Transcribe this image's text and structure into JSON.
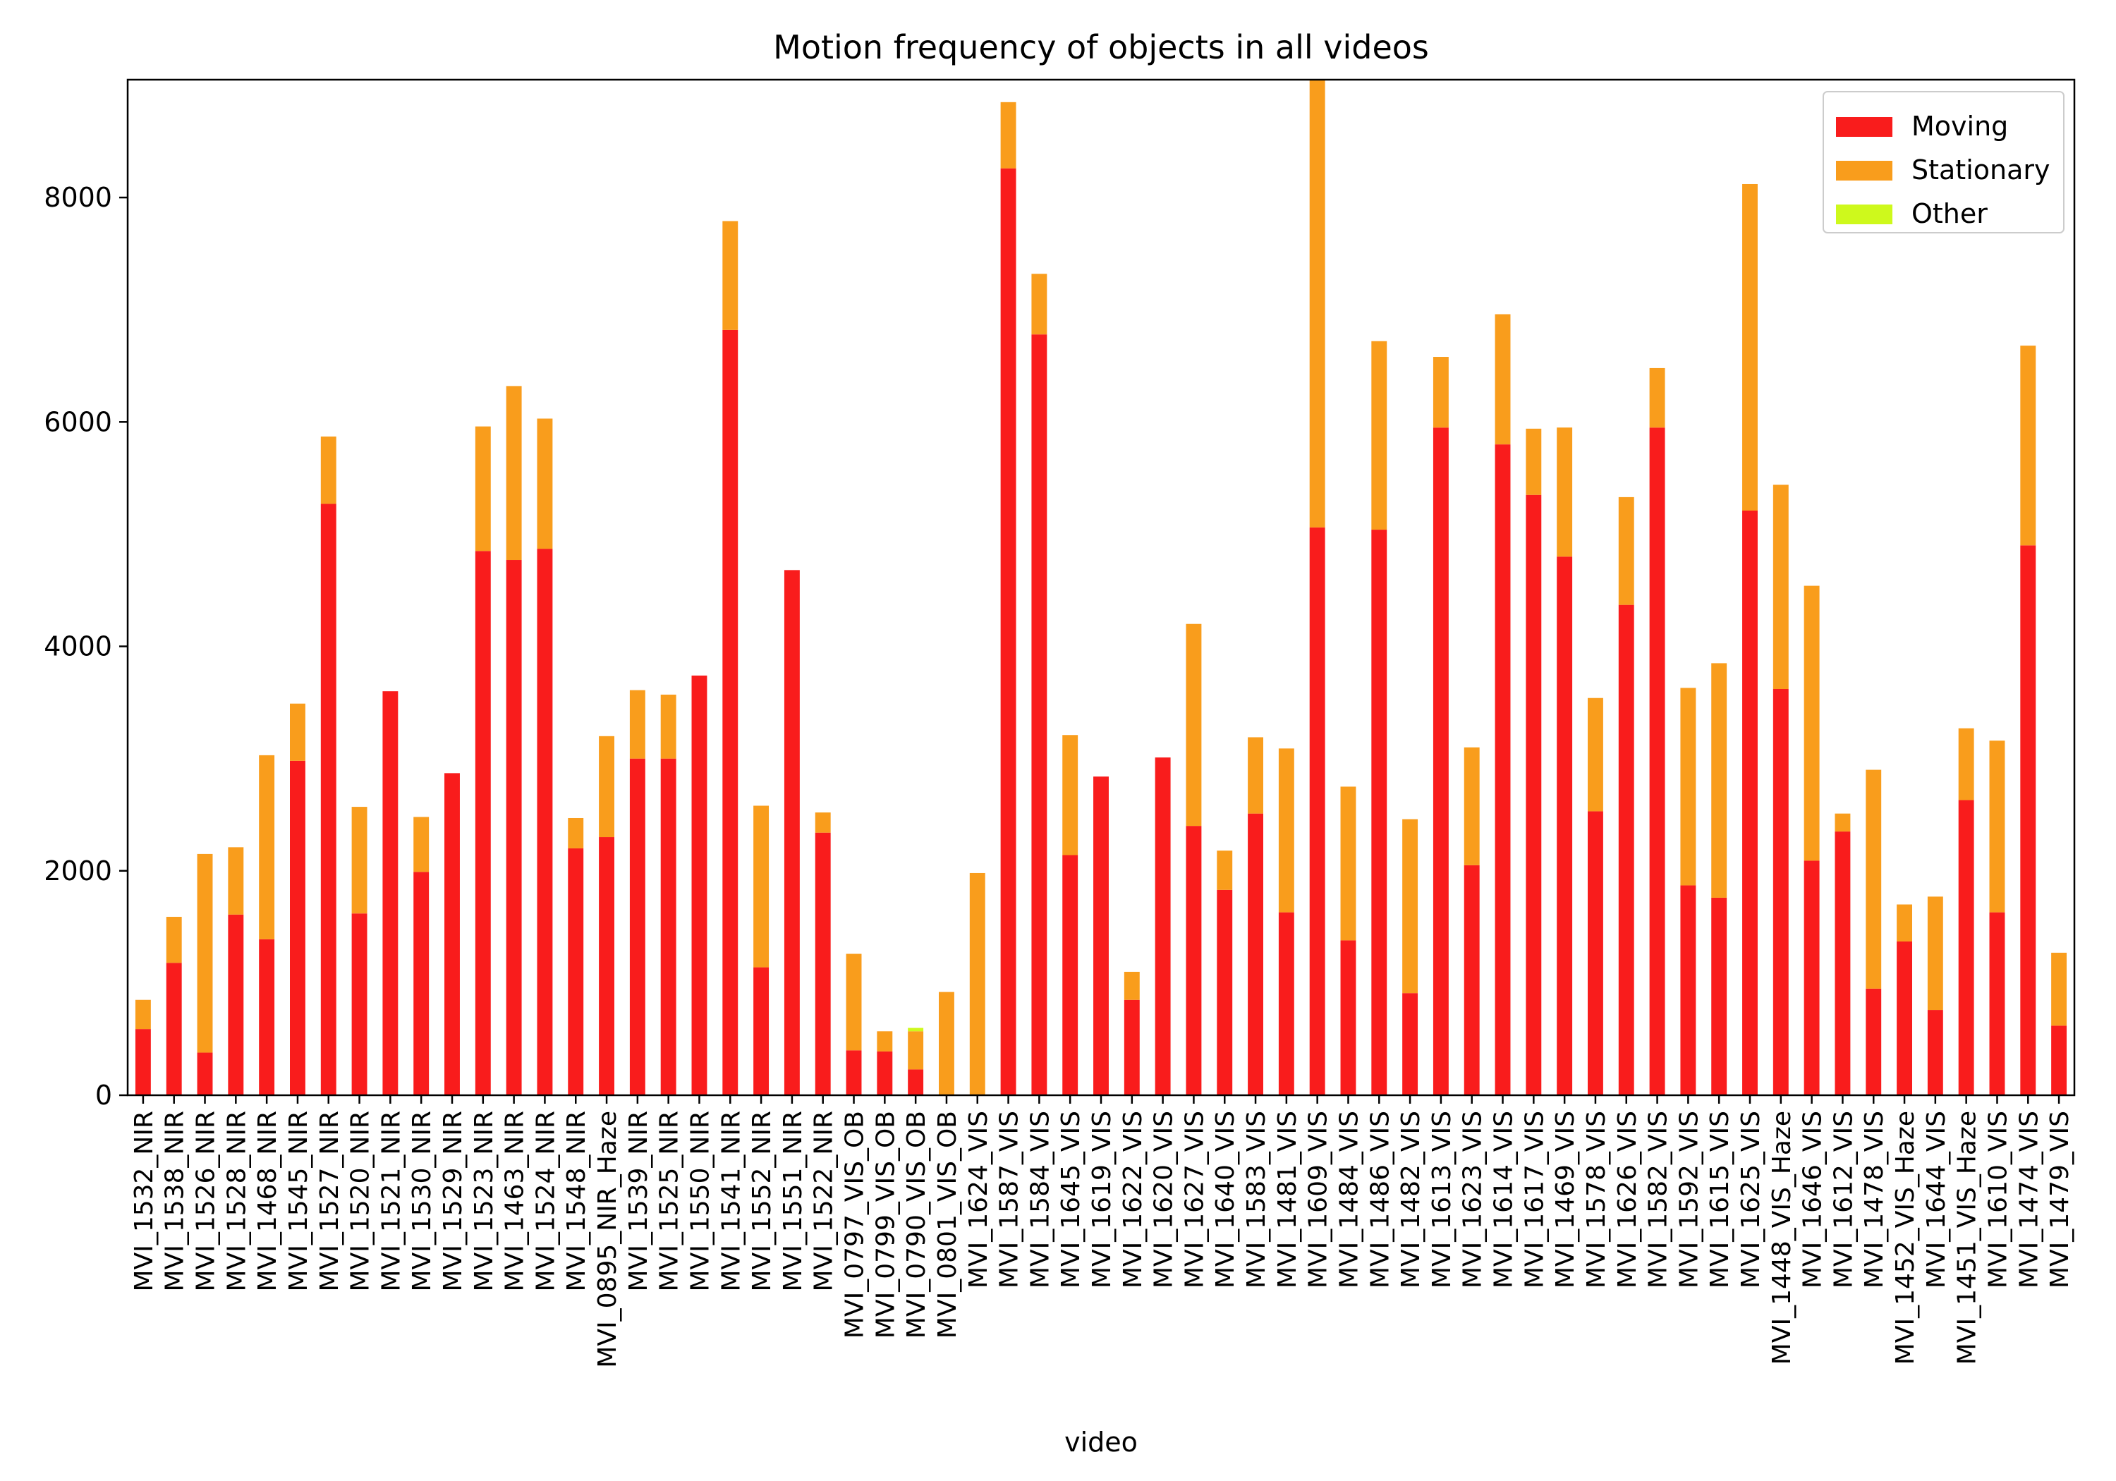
{
  "chart_data": {
    "type": "bar",
    "stacked": true,
    "title": "Motion frequency of objects in all videos",
    "xlabel": "video",
    "ylabel": "",
    "ylim": [
      0,
      9050
    ],
    "yticks": [
      0,
      2000,
      4000,
      6000,
      8000
    ],
    "grid": false,
    "legend_placement": "top-right",
    "categories": [
      "MVI_1532_NIR",
      "MVI_1538_NIR",
      "MVI_1526_NIR",
      "MVI_1528_NIR",
      "MVI_1468_NIR",
      "MVI_1545_NIR",
      "MVI_1527_NIR",
      "MVI_1520_NIR",
      "MVI_1521_NIR",
      "MVI_1530_NIR",
      "MVI_1529_NIR",
      "MVI_1523_NIR",
      "MVI_1463_NIR",
      "MVI_1524_NIR",
      "MVI_1548_NIR",
      "MVI_0895_NIR_Haze",
      "MVI_1539_NIR",
      "MVI_1525_NIR",
      "MVI_1550_NIR",
      "MVI_1541_NIR",
      "MVI_1552_NIR",
      "MVI_1551_NIR",
      "MVI_1522_NIR",
      "MVI_0797_VIS_OB",
      "MVI_0799_VIS_OB",
      "MVI_0790_VIS_OB",
      "MVI_0801_VIS_OB",
      "MVI_1624_VIS",
      "MVI_1587_VIS",
      "MVI_1584_VIS",
      "MVI_1645_VIS",
      "MVI_1619_VIS",
      "MVI_1622_VIS",
      "MVI_1620_VIS",
      "MVI_1627_VIS",
      "MVI_1640_VIS",
      "MVI_1583_VIS",
      "MVI_1481_VIS",
      "MVI_1609_VIS",
      "MVI_1484_VIS",
      "MVI_1486_VIS",
      "MVI_1482_VIS",
      "MVI_1613_VIS",
      "MVI_1623_VIS",
      "MVI_1614_VIS",
      "MVI_1617_VIS",
      "MVI_1469_VIS",
      "MVI_1578_VIS",
      "MVI_1626_VIS",
      "MVI_1582_VIS",
      "MVI_1592_VIS",
      "MVI_1615_VIS",
      "MVI_1625_VIS",
      "MVI_1448_VIS_Haze",
      "MVI_1646_VIS",
      "MVI_1612_VIS",
      "MVI_1478_VIS",
      "MVI_1452_VIS_Haze",
      "MVI_1644_VIS",
      "MVI_1451_VIS_Haze",
      "MVI_1610_VIS",
      "MVI_1474_VIS",
      "MVI_1479_VIS"
    ],
    "series": [
      {
        "name": "Moving",
        "color": "#f91c1c",
        "values": [
          590,
          1180,
          380,
          1610,
          1390,
          2980,
          5270,
          1620,
          3600,
          1990,
          2870,
          4850,
          4770,
          4870,
          2200,
          2300,
          3000,
          3000,
          3740,
          6820,
          1140,
          4680,
          2340,
          400,
          390,
          230,
          0,
          0,
          8260,
          6780,
          2140,
          2840,
          850,
          3010,
          2400,
          1830,
          2510,
          1630,
          5060,
          1380,
          5040,
          910,
          5950,
          2050,
          5800,
          5350,
          4800,
          2530,
          4370,
          5950,
          1870,
          1760,
          5210,
          3620,
          2090,
          2350,
          950,
          1370,
          760,
          2630,
          1630,
          4900,
          620
        ]
      },
      {
        "name": "Stationary",
        "color": "#f99d1c",
        "values": [
          260,
          410,
          1770,
          600,
          1640,
          510,
          600,
          950,
          0,
          490,
          0,
          1110,
          1550,
          1160,
          270,
          900,
          610,
          570,
          0,
          970,
          1440,
          0,
          180,
          860,
          180,
          340,
          920,
          1980,
          590,
          540,
          1070,
          0,
          250,
          0,
          1800,
          350,
          680,
          1460,
          3990,
          1370,
          1680,
          1550,
          630,
          1050,
          1160,
          590,
          1150,
          1010,
          960,
          530,
          1760,
          2090,
          2910,
          1820,
          2450,
          160,
          1950,
          330,
          1010,
          640,
          1530,
          1780,
          650
        ]
      },
      {
        "name": "Other",
        "color": "#cef91c",
        "values": [
          0,
          0,
          0,
          0,
          0,
          0,
          0,
          0,
          0,
          0,
          0,
          0,
          0,
          0,
          0,
          0,
          0,
          0,
          0,
          0,
          0,
          0,
          0,
          0,
          0,
          30,
          0,
          0,
          0,
          0,
          0,
          0,
          0,
          0,
          0,
          0,
          0,
          0,
          0,
          0,
          0,
          0,
          0,
          0,
          0,
          0,
          0,
          0,
          0,
          0,
          0,
          0,
          0,
          0,
          0,
          0,
          0,
          0,
          0,
          0,
          0,
          0,
          0
        ]
      }
    ]
  }
}
